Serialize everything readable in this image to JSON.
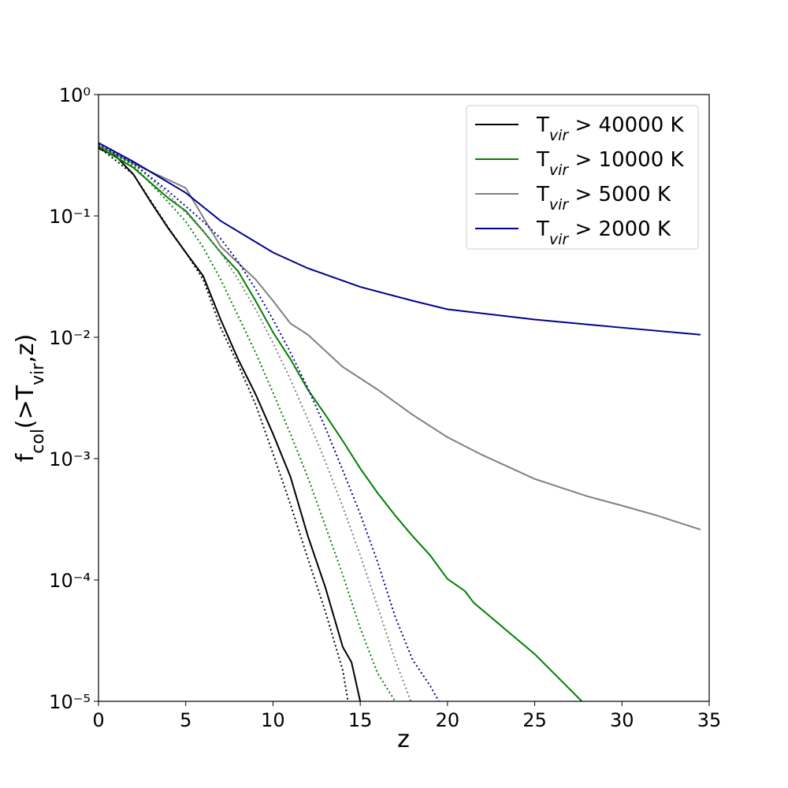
{
  "chart_data": {
    "type": "line",
    "xlabel": "z",
    "ylabel": [
      "f",
      "col",
      "(>T",
      "vir",
      ",z)"
    ],
    "xlim": [
      0,
      35
    ],
    "xticks": [
      0,
      5,
      10,
      15,
      20,
      25,
      30,
      35
    ],
    "ylim": [
      1e-05,
      1
    ],
    "ylog": true,
    "yticks": [
      {
        "value": 1e-05,
        "label": "10⁻⁵"
      },
      {
        "value": 0.0001,
        "label": "10⁻⁴"
      },
      {
        "value": 0.001,
        "label": "10⁻³"
      },
      {
        "value": 0.01,
        "label": "10⁻²"
      },
      {
        "value": 0.1,
        "label": "10⁻¹"
      },
      {
        "value": 1,
        "label": "10⁰"
      }
    ],
    "grid": false,
    "legend": "upper right",
    "series": [
      {
        "name": [
          "T",
          "vir",
          " > 40000 K"
        ],
        "color": "#000000",
        "style": "solid",
        "x": [
          0,
          1,
          2,
          3,
          4,
          5,
          6,
          7,
          8,
          9,
          10,
          11,
          12,
          13,
          14,
          14.5,
          15
        ],
        "values": [
          0.36,
          0.31,
          0.22,
          0.13,
          0.079,
          0.05,
          0.032,
          0.014,
          0.0066,
          0.0034,
          0.0016,
          0.00071,
          0.00023,
          8.7e-05,
          2.8e-05,
          2.1e-05,
          1e-05
        ]
      },
      {
        "name": [
          "T",
          "vir",
          " > 10000 K"
        ],
        "color": "#008000",
        "style": "solid",
        "x": [
          0,
          2,
          4,
          5,
          6,
          7,
          8,
          9,
          10,
          11,
          12,
          13,
          14,
          15,
          16,
          17,
          18,
          19,
          20,
          21,
          21.5,
          25,
          27.7
        ],
        "values": [
          0.37,
          0.25,
          0.14,
          0.11,
          0.075,
          0.05,
          0.035,
          0.02,
          0.011,
          0.0066,
          0.0037,
          0.0023,
          0.0014,
          0.00083,
          0.00052,
          0.00034,
          0.00023,
          0.00016,
          0.000102,
          8.1e-05,
          6.5e-05,
          2.45e-05,
          1e-05
        ]
      },
      {
        "name": [
          "T",
          "vir",
          " > 5000 K"
        ],
        "color": "#808080",
        "style": "solid",
        "x": [
          0,
          2,
          5,
          7,
          8,
          9,
          10,
          11,
          12,
          14,
          16,
          18,
          20,
          22,
          25,
          28,
          30,
          32,
          34.5
        ],
        "values": [
          0.38,
          0.27,
          0.17,
          0.056,
          0.041,
          0.03,
          0.02,
          0.013,
          0.0105,
          0.0057,
          0.0037,
          0.0023,
          0.0015,
          0.00107,
          0.00068,
          0.00049,
          0.00041,
          0.00034,
          0.00026
        ]
      },
      {
        "name": [
          "T",
          "vir",
          " > 2000 K"
        ],
        "color": "#00008b",
        "style": "solid",
        "x": [
          0,
          2,
          5,
          7,
          10,
          12,
          15,
          18,
          20,
          25,
          30,
          34.5
        ],
        "values": [
          0.4,
          0.28,
          0.155,
          0.091,
          0.05,
          0.037,
          0.026,
          0.02,
          0.017,
          0.014,
          0.012,
          0.0105
        ]
      },
      {
        "color": "#000000",
        "style": "dotted",
        "x": [
          0,
          2,
          4,
          5,
          6,
          7,
          8,
          9,
          10,
          11,
          12,
          13,
          14,
          14.3
        ],
        "values": [
          0.37,
          0.22,
          0.08,
          0.05,
          0.03,
          0.012,
          0.006,
          0.0028,
          0.0011,
          0.00042,
          0.00015,
          5.5e-05,
          1.8e-05,
          1e-05
        ]
      },
      {
        "color": "#008000",
        "style": "dotted",
        "x": [
          0,
          2,
          4,
          5,
          6,
          7,
          8,
          9,
          10,
          11,
          12,
          13,
          14,
          15,
          16,
          17
        ],
        "values": [
          0.38,
          0.26,
          0.13,
          0.09,
          0.055,
          0.03,
          0.015,
          0.0075,
          0.0035,
          0.0016,
          0.0007,
          0.00028,
          0.00011,
          4e-05,
          1.7e-05,
          1e-05
        ]
      },
      {
        "color": "#808080",
        "style": "dotted",
        "x": [
          0,
          2,
          4,
          6,
          7,
          8,
          9,
          10,
          11,
          12,
          13,
          14,
          15,
          16,
          17,
          17.9
        ],
        "values": [
          0.39,
          0.27,
          0.15,
          0.075,
          0.05,
          0.03,
          0.017,
          0.009,
          0.0045,
          0.0021,
          0.00095,
          0.0004,
          0.00016,
          6e-05,
          2.2e-05,
          1e-05
        ]
      },
      {
        "color": "#00008b",
        "style": "dotted",
        "x": [
          0,
          2,
          4,
          6,
          7,
          8,
          9,
          10,
          11,
          12,
          13,
          14,
          15,
          16,
          17,
          18,
          19,
          19.5
        ],
        "values": [
          0.39,
          0.27,
          0.16,
          0.09,
          0.065,
          0.042,
          0.025,
          0.014,
          0.0075,
          0.0038,
          0.0018,
          0.0008,
          0.00035,
          0.00014,
          5e-05,
          2.2e-05,
          1.35e-05,
          1e-05
        ]
      }
    ]
  }
}
